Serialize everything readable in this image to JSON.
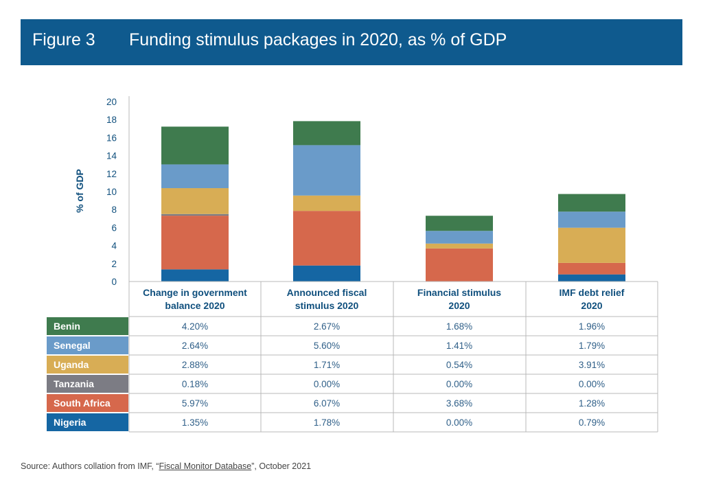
{
  "figure": {
    "label": "Figure 3",
    "title": "Funding stimulus packages in 2020, as % of GDP"
  },
  "source": {
    "prefix": "Source: Authors collation from IMF, “",
    "link": "Fiscal Monitor Database",
    "suffix": "”, October 2021"
  },
  "chart_data": {
    "type": "bar",
    "stacked": true,
    "ylabel": "% of GDP",
    "ylim": [
      0,
      20
    ],
    "yticks": [
      0,
      2,
      4,
      6,
      8,
      10,
      12,
      14,
      16,
      18,
      20
    ],
    "categories": [
      [
        "Change in government",
        "balance 2020"
      ],
      [
        "Announced fiscal",
        "stimulus 2020"
      ],
      [
        "Financial stimulus",
        "2020"
      ],
      [
        "IMF debt relief",
        "2020"
      ]
    ],
    "series": [
      {
        "name": "Nigeria",
        "color": "#1566a3",
        "values": [
          1.35,
          1.78,
          0.0,
          0.79
        ],
        "labels": [
          "1.35%",
          "1.78%",
          "0.00%",
          "0.79%"
        ]
      },
      {
        "name": "South Africa",
        "color": "#d6684c",
        "values": [
          5.97,
          6.07,
          3.68,
          1.28
        ],
        "labels": [
          "5.97%",
          "6.07%",
          "3.68%",
          "1.28%"
        ]
      },
      {
        "name": "Tanzania",
        "color": "#7c7c84",
        "values": [
          0.18,
          0.0,
          0.0,
          0.0
        ],
        "labels": [
          "0.18%",
          "0.00%",
          "0.00%",
          "0.00%"
        ]
      },
      {
        "name": "Uganda",
        "color": "#d8ad55",
        "values": [
          2.88,
          1.71,
          0.54,
          3.91
        ],
        "labels": [
          "2.88%",
          "1.71%",
          "0.54%",
          "3.91%"
        ]
      },
      {
        "name": "Senegal",
        "color": "#6a9bc9",
        "values": [
          2.64,
          5.6,
          1.41,
          1.79
        ],
        "labels": [
          "2.64%",
          "5.60%",
          "1.41%",
          "1.79%"
        ]
      },
      {
        "name": "Benin",
        "color": "#3f7b4e",
        "values": [
          4.2,
          2.67,
          1.68,
          1.96
        ],
        "labels": [
          "4.20%",
          "2.67%",
          "1.68%",
          "1.96%"
        ]
      }
    ],
    "table_row_order": [
      "Benin",
      "Senegal",
      "Uganda",
      "Tanzania",
      "South Africa",
      "Nigeria"
    ],
    "colors": {
      "axis_text": "#0f4f7d",
      "table_border": "#b9b9b9",
      "cell_text": "#2f5f88"
    }
  }
}
